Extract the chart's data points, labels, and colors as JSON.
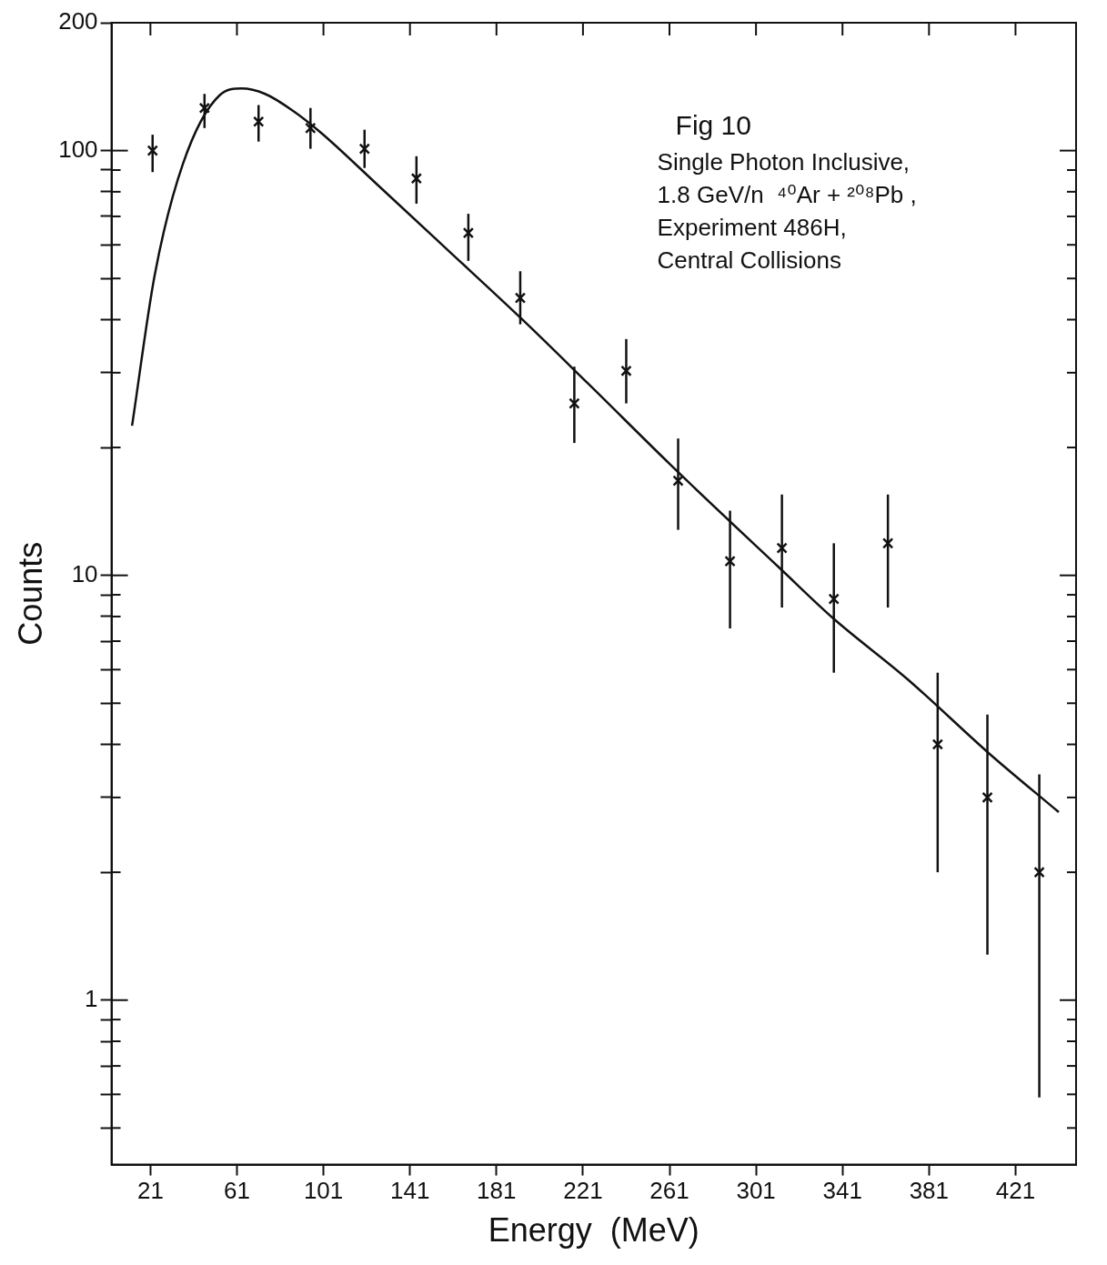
{
  "chart_data": {
    "type": "scatter",
    "title": "Fig 10",
    "xlabel": "Energy  (MeV)",
    "ylabel": "Counts",
    "annotations": [
      "Single Photon Inclusive,",
      "1.8 GeV/n  ⁴⁰Ar + ²⁰⁸Pb ,",
      "Experiment 486H,",
      "Central Collisions"
    ],
    "log": "y",
    "grid": false,
    "legend": false,
    "marker": "cross",
    "xlim": [
      3,
      449
    ],
    "xticks": [
      21,
      61,
      101,
      141,
      181,
      221,
      261,
      301,
      341,
      381,
      421
    ],
    "ylim": [
      0.41,
      200
    ],
    "yticks": [
      {
        "value": 0.5,
        "label": null
      },
      {
        "value": 0.6,
        "label": null
      },
      {
        "value": 0.7,
        "label": null
      },
      {
        "value": 0.8,
        "label": null
      },
      {
        "value": 0.9,
        "label": null
      },
      1,
      {
        "value": 2,
        "label": null
      },
      {
        "value": 3,
        "label": null
      },
      {
        "value": 4,
        "label": null
      },
      {
        "value": 5,
        "label": null
      },
      {
        "value": 6,
        "label": null
      },
      {
        "value": 7,
        "label": null
      },
      {
        "value": 8,
        "label": null
      },
      {
        "value": 9,
        "label": null
      },
      10,
      {
        "value": 20,
        "label": null
      },
      {
        "value": 30,
        "label": null
      },
      {
        "value": 40,
        "label": null
      },
      {
        "value": 50,
        "label": null
      },
      {
        "value": 60,
        "label": null
      },
      {
        "value": 70,
        "label": null
      },
      {
        "value": 80,
        "label": null
      },
      {
        "value": 90,
        "label": null
      },
      100,
      200
    ],
    "series": [
      {
        "color": "#111111",
        "x": [
          22,
          46,
          71,
          95,
          120,
          144,
          168,
          192,
          217,
          241,
          265,
          289,
          313,
          337,
          362,
          385,
          408,
          432
        ],
        "values": [
          100,
          126,
          117,
          113,
          101,
          86,
          64,
          45,
          25.4,
          30.3,
          16.7,
          10.8,
          11.6,
          8.8,
          11.9,
          4.0,
          3.0,
          2.0
        ],
        "errors": [
          [
            89,
            109
          ],
          [
            113,
            136
          ],
          [
            105,
            128
          ],
          [
            101,
            126
          ],
          [
            91,
            112
          ],
          [
            75,
            97
          ],
          [
            55,
            71
          ],
          [
            39,
            52
          ],
          [
            20.5,
            31
          ],
          [
            25.4,
            36
          ],
          [
            12.8,
            21
          ],
          [
            7.5,
            14.2
          ],
          [
            8.4,
            15.5
          ],
          [
            5.9,
            11.9
          ],
          [
            8.4,
            15.5
          ],
          [
            2.0,
            5.9
          ],
          [
            1.28,
            4.7
          ],
          [
            0.59,
            3.4
          ]
        ]
      },
      {
        "type": "line",
        "color": "#111111",
        "marker": "none",
        "x": [
          12.5,
          23,
          36,
          53,
          63,
          74,
          87,
          100,
          125,
          159,
          193,
          223,
          265,
          312,
          337,
          371,
          409,
          441
        ],
        "values": [
          22.5,
          51,
          93,
          135,
          140,
          136,
          124,
          110,
          84,
          58,
          40,
          28.4,
          17.5,
          10.4,
          7.9,
          5.7,
          3.8,
          2.77
        ]
      }
    ]
  }
}
